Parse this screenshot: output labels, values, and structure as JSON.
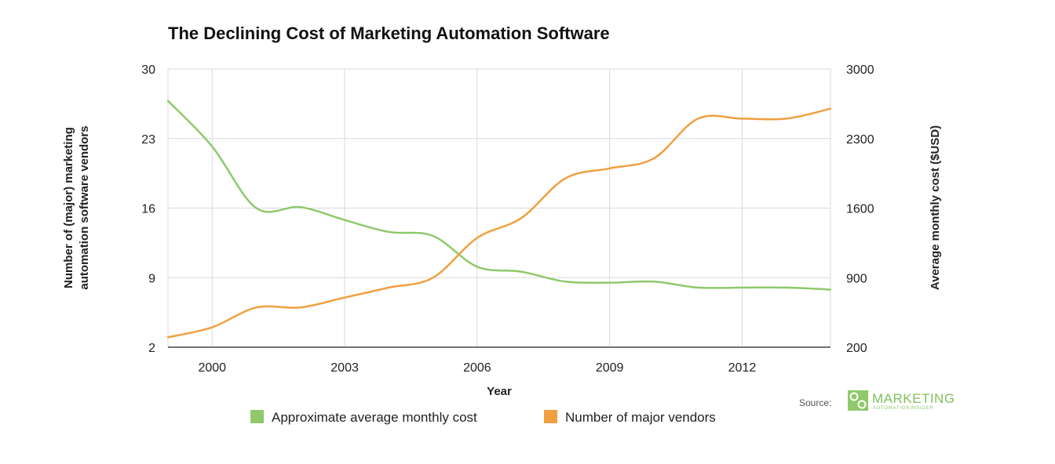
{
  "chart_data": {
    "type": "line",
    "title": "The Declining Cost of Marketing Automation Software",
    "xlabel": "Year",
    "ylabel_left": "Number of (major) marketing automation software vendors",
    "ylabel_left_lines": [
      "Number of (major) marketing",
      "automation software vendors"
    ],
    "ylabel_right": "Average monthly cost ($USD)",
    "xlim": [
      1999,
      2014
    ],
    "x_ticks": [
      2000,
      2003,
      2006,
      2009,
      2012
    ],
    "y_left_lim": [
      2,
      30
    ],
    "y_left_ticks": [
      2,
      9,
      16,
      23,
      30
    ],
    "y_right_lim": [
      200,
      3000
    ],
    "y_right_ticks": [
      200,
      900,
      1600,
      2300,
      3000
    ],
    "grid": true,
    "legend_position": "bottom",
    "series": [
      {
        "name": "Approximate average monthly cost",
        "axis": "right",
        "color": "#8fc96b",
        "x": [
          1999,
          2000,
          2001,
          2002,
          2003,
          2004,
          2005,
          2006,
          2007,
          2008,
          2009,
          2010,
          2011,
          2012,
          2013,
          2014
        ],
        "values": [
          2680,
          2220,
          1600,
          1610,
          1480,
          1360,
          1320,
          1010,
          960,
          860,
          850,
          860,
          800,
          800,
          800,
          780
        ]
      },
      {
        "name": "Number of major vendors",
        "axis": "left",
        "color": "#f0a040",
        "x": [
          1999,
          2000,
          2001,
          2002,
          2003,
          2004,
          2005,
          2006,
          2007,
          2008,
          2009,
          2010,
          2011,
          2012,
          2013,
          2014
        ],
        "values": [
          3,
          4,
          6,
          6,
          7,
          8,
          9,
          13,
          15,
          19,
          20,
          21,
          25,
          25,
          25,
          26
        ]
      }
    ]
  },
  "source": {
    "label": "Source:",
    "logo_word": "MARKETING",
    "logo_sub": "AUTOMATIONINSIDER",
    "colors": {
      "logo": "#7fbf5a"
    }
  }
}
